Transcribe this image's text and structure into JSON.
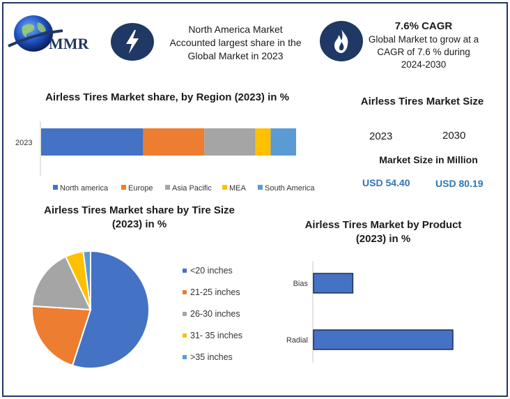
{
  "brand": {
    "logo_text": "MMR"
  },
  "header": {
    "na_text": "North America Market Accounted largest share in the Global Market in 2023",
    "cagr_title": "7.6% CAGR",
    "cagr_text": "Global Market to grow at a CAGR of 7.6 % during 2024-2030"
  },
  "market_size": {
    "title": "Airless Tires Market Size",
    "year_a": "2023",
    "year_b": "2030",
    "subtitle": "Market Size in Million",
    "value_a": "USD 54.40",
    "value_b": "USD 80.19"
  },
  "colors": {
    "navy": "#1f3864",
    "blue": "#4472c4",
    "orange": "#ed7d31",
    "gray": "#a5a5a5",
    "yellow": "#ffc000",
    "lightblue": "#5b9bd5"
  },
  "chart_data": [
    {
      "type": "bar",
      "orientation": "horizontal-stacked",
      "title": "Airless Tires Market share, by Region (2023) in %",
      "categories": [
        "2023"
      ],
      "series": [
        {
          "name": "North america",
          "values": [
            40
          ],
          "color": "#4472c4"
        },
        {
          "name": "Europe",
          "values": [
            24
          ],
          "color": "#ed7d31"
        },
        {
          "name": "Asia Pacific",
          "values": [
            20
          ],
          "color": "#a5a5a5"
        },
        {
          "name": "MEA",
          "values": [
            6
          ],
          "color": "#ffc000"
        },
        {
          "name": "South America",
          "values": [
            10
          ],
          "color": "#5b9bd5"
        }
      ],
      "legend": "bottom"
    },
    {
      "type": "pie",
      "title": "Airless Tires Market share by Tire Size (2023) in %",
      "labels": [
        "<20 inches",
        "21-25 inches",
        "26-30 inches",
        "31- 35 inches",
        ">35 inches"
      ],
      "values": [
        55,
        21,
        17,
        5,
        2
      ],
      "colors": [
        "#4472c4",
        "#ed7d31",
        "#a5a5a5",
        "#ffc000",
        "#5b9bd5"
      ],
      "legend": "right"
    },
    {
      "type": "bar",
      "orientation": "horizontal",
      "title": "Airless Tires Market by Product (2023) in %",
      "categories": [
        "Bias",
        "Radial"
      ],
      "values": [
        22,
        78
      ],
      "color": "#4472c4"
    }
  ]
}
